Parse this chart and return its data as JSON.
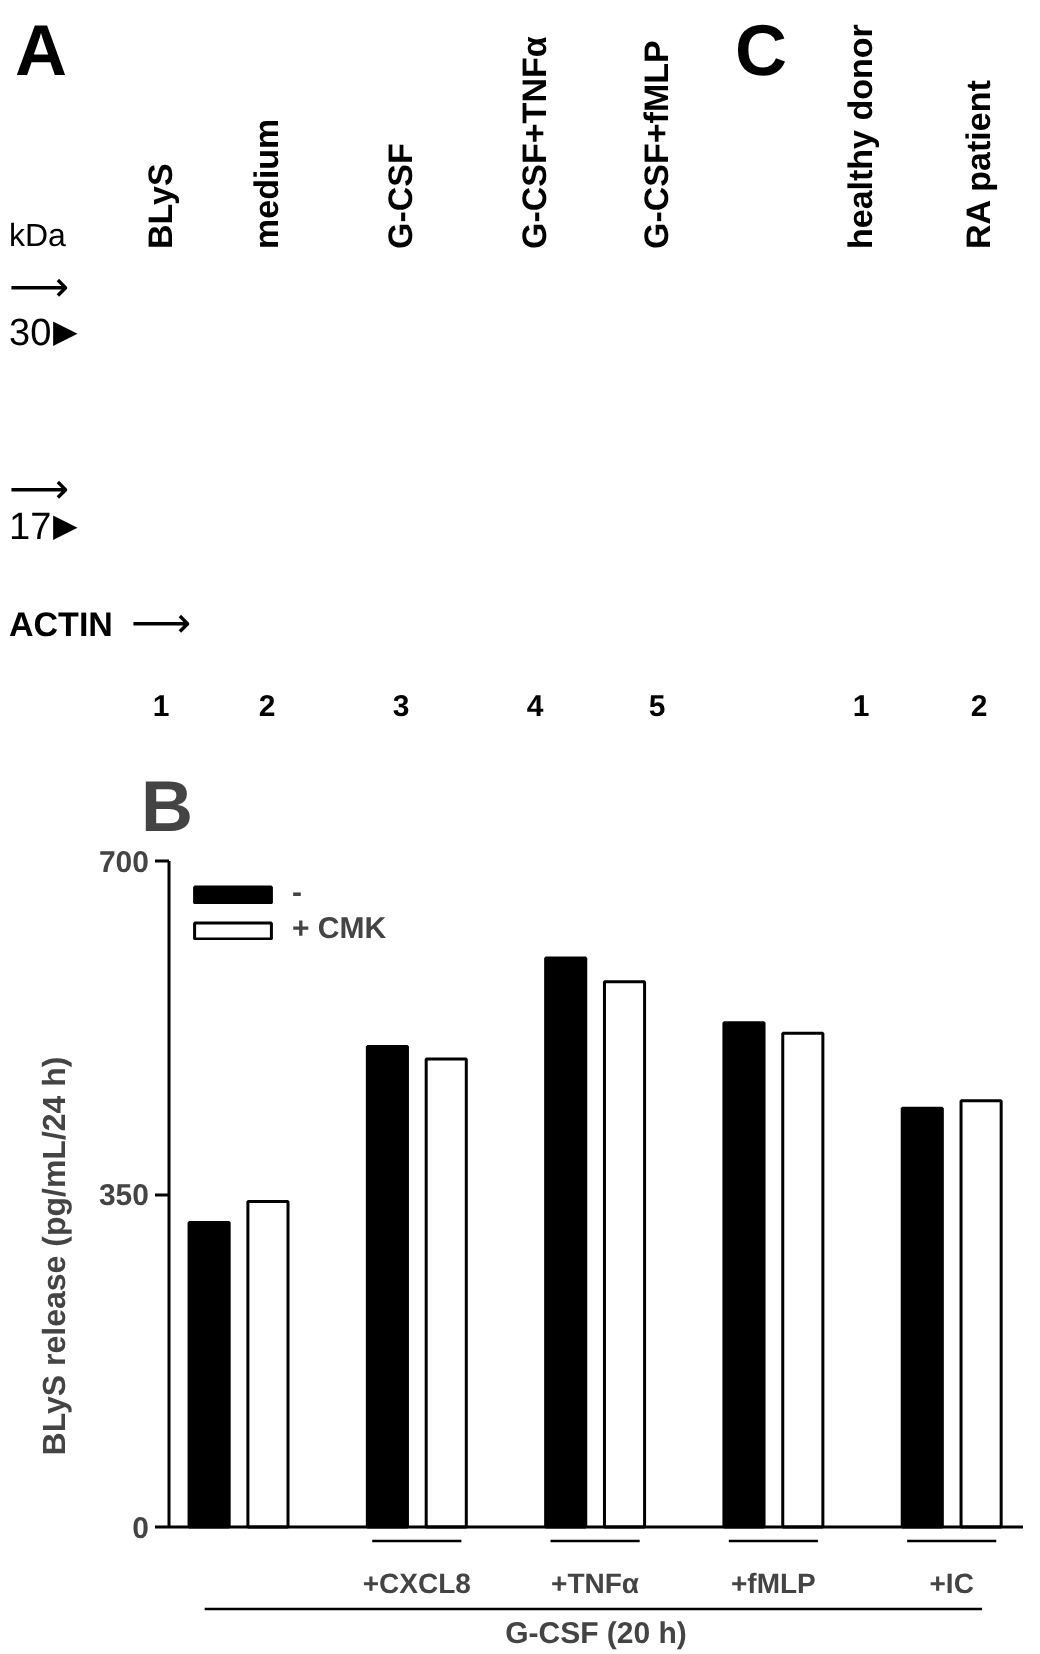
{
  "chart_data": [
    {
      "type": "other",
      "title": "A",
      "categories": [
        "1",
        "2",
        "3",
        "4",
        "5"
      ],
      "annotations": [
        "BLyS",
        "medium",
        "G-CSF",
        "G-CSF+TNFα",
        "G-CSF+fMLP",
        "kDa",
        "⟶",
        "30",
        "▶",
        "⟶",
        "17",
        "▶",
        "ACTIN",
        "⟶"
      ]
    },
    {
      "type": "other",
      "title": "C",
      "categories": [
        "1",
        "2"
      ],
      "annotations": [
        "healthy donor",
        "RA patient"
      ]
    },
    {
      "type": "bar",
      "title": "B",
      "categories": [
        null,
        "+CXCL8",
        "+TNFα",
        "+fMLP",
        "+IC"
      ],
      "series": [
        {
          "name": "-",
          "color": "#000000",
          "values": [
            320,
            505,
            598,
            530,
            440
          ]
        },
        {
          "name": "+ CMK",
          "color": "#ffffff",
          "values": [
            342,
            492,
            573,
            519,
            448
          ]
        }
      ],
      "ylabel": "BLyS release (pg/mL/24 h)",
      "xlabel": "G-CSF (20 h)",
      "ylim": [
        0,
        700
      ],
      "yticks": [
        0,
        350,
        700
      ],
      "legend": "top left"
    }
  ]
}
